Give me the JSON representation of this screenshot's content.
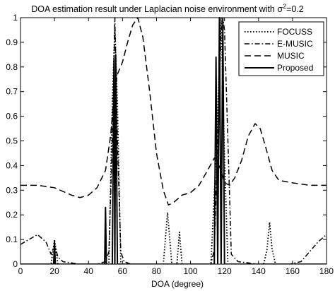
{
  "chart_data": {
    "type": "line",
    "title_main": "DOA estimation result under Laplacian noise environment with σ",
    "title_sup": "2",
    "title_tail": "=0.2",
    "xlabel": "DOA (degree)",
    "ylabel": "",
    "xlim": [
      0,
      180
    ],
    "ylim": [
      0,
      1
    ],
    "xticks": [
      0,
      20,
      40,
      60,
      80,
      100,
      120,
      140,
      160,
      180
    ],
    "yticks": [
      0,
      0.1,
      0.2,
      0.3,
      0.4,
      0.5,
      0.6,
      0.7,
      0.8,
      0.9,
      1
    ],
    "ytick_labels": [
      "0",
      "0.1",
      "0.2",
      "0.3",
      "0.4",
      "0.5",
      "0.6",
      "0.7",
      "0.8",
      "0.9",
      "1"
    ],
    "grid": false,
    "legend_position": "top-right",
    "series": [
      {
        "name": "FOCUSS",
        "style": "dotted",
        "x": [
          0,
          18,
          20,
          22,
          24,
          52,
          54,
          55.5,
          57,
          59,
          84,
          86.5,
          89,
          92,
          93.5,
          95,
          112,
          115,
          118,
          120,
          122,
          124,
          143,
          145,
          146.5,
          148,
          150,
          180
        ],
        "y": [
          0,
          0,
          0.1,
          0,
          0,
          0,
          0.65,
          0.96,
          0.65,
          0,
          0,
          0.21,
          0,
          0,
          0.13,
          0,
          0,
          0.43,
          1.0,
          0.43,
          0,
          0,
          0,
          0.06,
          0.17,
          0.06,
          0,
          0
        ]
      },
      {
        "name": "E-MUSIC",
        "style": "dashdot",
        "x": [
          0,
          5,
          10,
          15,
          18,
          20,
          22,
          25,
          30,
          35,
          45,
          50,
          52,
          54,
          55.5,
          57,
          59,
          61,
          65,
          75,
          90,
          105,
          112,
          114,
          116,
          118,
          119,
          120,
          122,
          124,
          128,
          140,
          150,
          158,
          165,
          170,
          175,
          180
        ],
        "y": [
          0.08,
          0.1,
          0.12,
          0.09,
          0.04,
          0.08,
          0.03,
          0.01,
          0.005,
          0,
          0,
          0.01,
          0.05,
          0.5,
          1.0,
          0.5,
          0.05,
          0.01,
          0,
          0,
          0,
          0,
          0,
          0.06,
          0.5,
          0.95,
          1.0,
          0.95,
          0.5,
          0.04,
          0.01,
          0,
          0,
          0,
          0.01,
          0.05,
          0.09,
          0.12
        ]
      },
      {
        "name": "MUSIC",
        "style": "dashed",
        "x": [
          0,
          10,
          20,
          30,
          35,
          40,
          45,
          50,
          53,
          55,
          57,
          60,
          63,
          66,
          69,
          72,
          76,
          80,
          84,
          87,
          90,
          95,
          100,
          105,
          110,
          114,
          116,
          118,
          120,
          123,
          126,
          130,
          134,
          138,
          141,
          144,
          148,
          152,
          160,
          170,
          180
        ],
        "y": [
          0.32,
          0.32,
          0.31,
          0.28,
          0.27,
          0.28,
          0.31,
          0.38,
          0.52,
          0.68,
          0.77,
          0.82,
          0.9,
          0.97,
          1.0,
          0.92,
          0.7,
          0.45,
          0.3,
          0.24,
          0.25,
          0.28,
          0.29,
          0.32,
          0.38,
          0.43,
          0.41,
          0.38,
          0.33,
          0.32,
          0.35,
          0.42,
          0.52,
          0.57,
          0.55,
          0.48,
          0.38,
          0.34,
          0.33,
          0.32,
          0.32
        ]
      },
      {
        "name": "Proposed",
        "style": "solid",
        "x": [
          0,
          19.5,
          20,
          20.5,
          49.5,
          50,
          50.5,
          54,
          55,
          55.5,
          56,
          57,
          114,
          115,
          116,
          117,
          118,
          119,
          120,
          180
        ],
        "y": [
          0,
          0,
          0.09,
          0,
          0,
          0.23,
          0,
          0,
          0.83,
          0,
          0.85,
          0,
          0,
          0.84,
          0,
          1.0,
          0,
          0.99,
          0,
          0
        ]
      }
    ]
  }
}
